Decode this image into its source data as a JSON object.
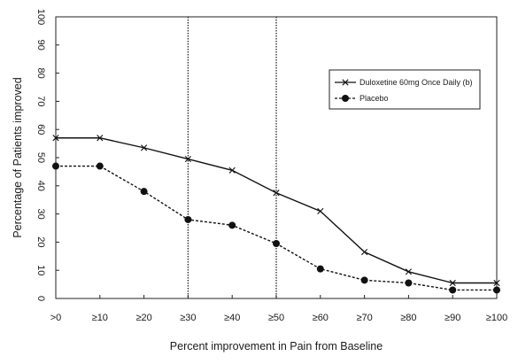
{
  "chart_data": {
    "type": "line",
    "title": "",
    "xlabel": "Percent improvement in Pain from Baseline",
    "ylabel": "Percentage of Patients improved",
    "categories": [
      ">0",
      "≥10",
      "≥20",
      "≥30",
      "≥40",
      "≥50",
      "≥60",
      "≥70",
      "≥80",
      "≥90",
      "≥100"
    ],
    "ylim": [
      0,
      100
    ],
    "yticks": [
      "0",
      "10",
      "20",
      "30",
      "40",
      "50",
      "60",
      "70",
      "80",
      "90",
      "100"
    ],
    "grid": false,
    "legend_position": "right",
    "reference_lines_at": [
      "≥30",
      "≥50"
    ],
    "series": [
      {
        "name": "Duloxetine 60mg Once Daily (b)",
        "marker": "x",
        "line_style": "solid",
        "values": [
          57,
          57,
          53.5,
          49.5,
          45.5,
          37.5,
          31,
          16.5,
          9.5,
          5.5,
          5.5
        ]
      },
      {
        "name": "Placebo",
        "marker": "filled-circle",
        "line_style": "dashed",
        "values": [
          47,
          47,
          38,
          28,
          26,
          19.5,
          10.5,
          6.5,
          5.5,
          3,
          3
        ]
      }
    ]
  }
}
